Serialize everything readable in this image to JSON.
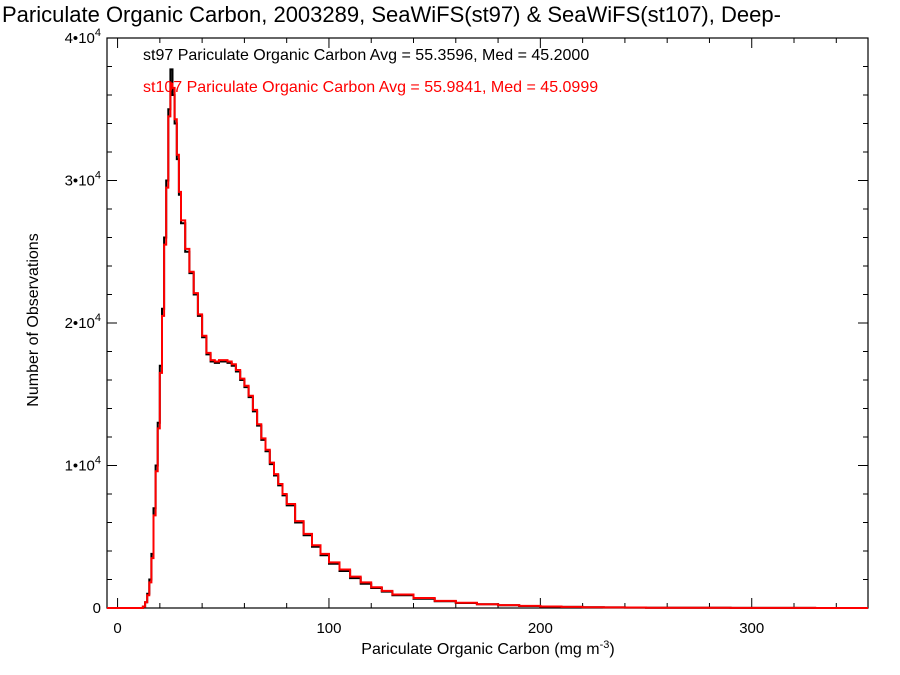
{
  "chart_data": {
    "type": "line",
    "title": "Pariculate Organic Carbon, 2003289, SeaWiFS(st97) & SeaWiFS(st107), Deep-",
    "xlabel_main": "Pariculate Organic Carbon (mg m",
    "xlabel_sup": "-3",
    "xlabel_tail": ")",
    "ylabel": "Number of Observations",
    "xlim": [
      -5,
      355
    ],
    "ylim": [
      0,
      40000
    ],
    "x_ticks": [
      0,
      100,
      200,
      300
    ],
    "y_ticks": [
      {
        "value": 0,
        "base": "0",
        "exp": ""
      },
      {
        "value": 10000,
        "base": "1•10",
        "exp": "4"
      },
      {
        "value": 20000,
        "base": "2•10",
        "exp": "4"
      },
      {
        "value": 30000,
        "base": "3•10",
        "exp": "4"
      },
      {
        "value": 40000,
        "base": "4•10",
        "exp": "4"
      }
    ],
    "series": [
      {
        "name": "st97",
        "label": "st97 Pariculate Organic Carbon Avg = 55.3596, Med = 45.2000",
        "color": "#000000",
        "x": [
          -5,
          12,
          13,
          14,
          15,
          16,
          17,
          18,
          19,
          20,
          21,
          22,
          23,
          24,
          25,
          26,
          27,
          28,
          29,
          30,
          32,
          34,
          36,
          38,
          40,
          42,
          44,
          46,
          48,
          50,
          52,
          54,
          56,
          58,
          60,
          62,
          64,
          66,
          68,
          70,
          72,
          74,
          76,
          78,
          80,
          84,
          88,
          92,
          96,
          100,
          105,
          110,
          115,
          120,
          125,
          130,
          140,
          150,
          160,
          170,
          180,
          190,
          200,
          210,
          220,
          230,
          240,
          250,
          270,
          290,
          310,
          330,
          355
        ],
        "y": [
          0,
          100,
          400,
          1000,
          2000,
          3800,
          7000,
          10000,
          13000,
          17000,
          21000,
          26000,
          30000,
          35000,
          37800,
          36000,
          34000,
          31500,
          29000,
          27000,
          25000,
          23500,
          22000,
          20500,
          19000,
          17800,
          17300,
          17200,
          17300,
          17300,
          17200,
          17000,
          16600,
          16000,
          15500,
          14800,
          13800,
          12800,
          11800,
          11000,
          10100,
          9300,
          8600,
          7900,
          7200,
          6000,
          5100,
          4300,
          3700,
          3100,
          2600,
          2100,
          1700,
          1400,
          1150,
          900,
          650,
          480,
          350,
          260,
          190,
          140,
          100,
          75,
          55,
          40,
          30,
          22,
          12,
          8,
          5,
          3,
          2
        ]
      },
      {
        "name": "st107",
        "label": "st107 Pariculate Organic Carbon Avg = 55.9841, Med = 45.0999",
        "color": "#ff0000",
        "x": [
          -5,
          12,
          13,
          14,
          15,
          16,
          17,
          18,
          19,
          20,
          21,
          22,
          23,
          24,
          25,
          26,
          27,
          28,
          29,
          30,
          32,
          34,
          36,
          38,
          40,
          42,
          44,
          46,
          48,
          50,
          52,
          54,
          56,
          58,
          60,
          62,
          64,
          66,
          68,
          70,
          72,
          74,
          76,
          78,
          80,
          84,
          88,
          92,
          96,
          100,
          105,
          110,
          115,
          120,
          125,
          130,
          140,
          150,
          160,
          170,
          180,
          190,
          200,
          210,
          220,
          230,
          240,
          250,
          270,
          290,
          310,
          330,
          355
        ],
        "y": [
          0,
          100,
          400,
          900,
          1800,
          3500,
          6500,
          9600,
          12600,
          16500,
          20500,
          25500,
          29500,
          34500,
          36800,
          36500,
          34300,
          31800,
          29200,
          27200,
          25200,
          23600,
          22100,
          20600,
          19100,
          17900,
          17400,
          17300,
          17400,
          17400,
          17300,
          17100,
          16700,
          16100,
          15600,
          14900,
          13900,
          12900,
          11900,
          11100,
          10200,
          9400,
          8700,
          8000,
          7300,
          6100,
          5200,
          4400,
          3800,
          3200,
          2700,
          2200,
          1800,
          1450,
          1200,
          950,
          700,
          500,
          370,
          270,
          200,
          150,
          105,
          80,
          58,
          42,
          32,
          24,
          13,
          9,
          6,
          3,
          2
        ]
      }
    ]
  }
}
